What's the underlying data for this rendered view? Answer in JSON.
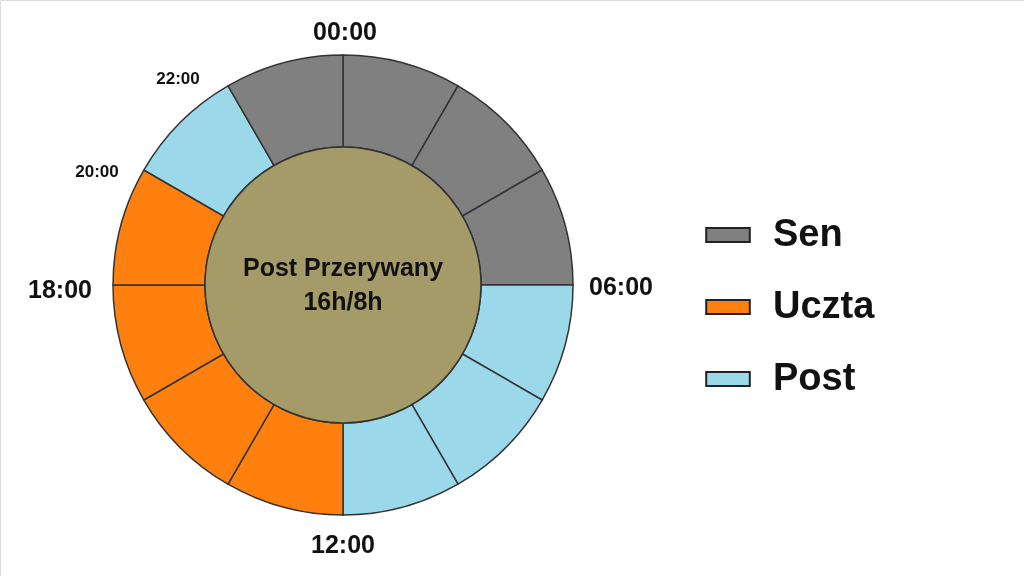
{
  "chart_data": {
    "type": "donut",
    "categories": [
      "Sen",
      null,
      null,
      null,
      null,
      null,
      "Uczta",
      null,
      null,
      null,
      "Post",
      null
    ],
    "values": [
      8.333333,
      8.333333,
      8.333333,
      8.333333,
      8.333333,
      8.333333,
      8.333333,
      8.333333,
      8.333333,
      8.333333,
      8.333333,
      8.333333
    ],
    "colors": [
      "#808080",
      "#808080",
      "#808080",
      "#9bd9ea",
      "#9bd9ea",
      "#9bd9ea",
      "#ff800e",
      "#ff800e",
      "#ff800e",
      "#ff800e",
      "#9bd9ea",
      "#808080"
    ],
    "annotations": [
      "Post Przerywany",
      "16h/8h",
      "00:00",
      "06:00",
      "12:00",
      "18:00",
      "20:00",
      "22:00"
    ],
    "legend": "right"
  }
}
